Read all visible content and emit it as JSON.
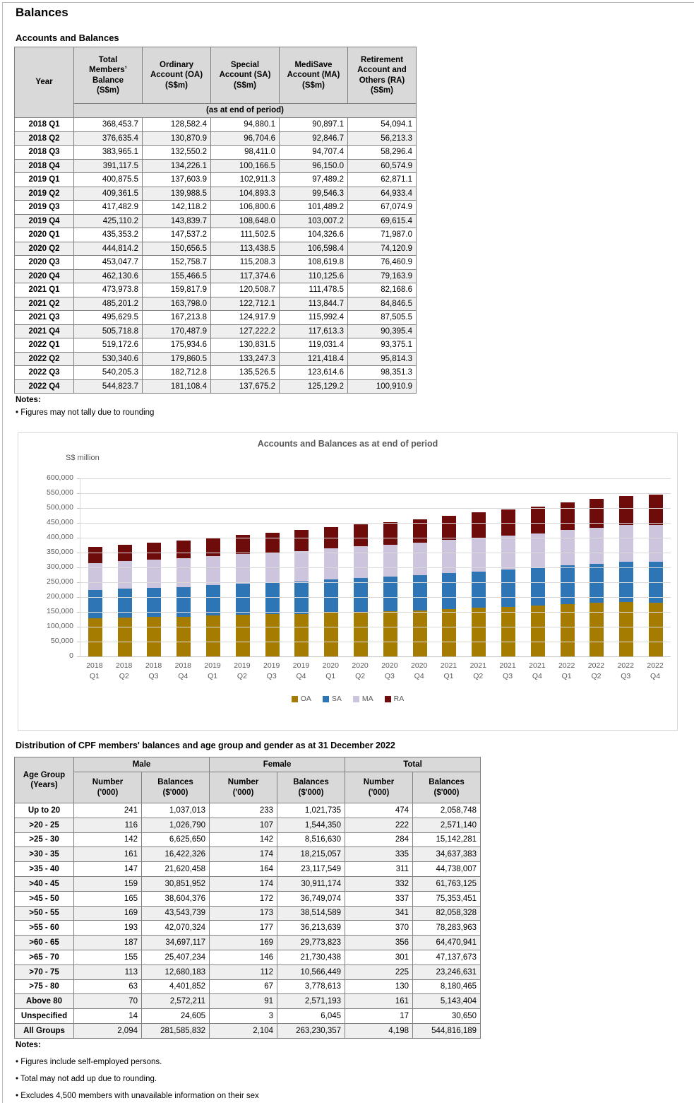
{
  "page": {
    "title": "Balances"
  },
  "table1": {
    "title": "Accounts and Balances",
    "columns": [
      [
        "Year"
      ],
      [
        "Total",
        "Members’",
        "Balance",
        "(S$m)"
      ],
      [
        "Ordinary",
        "Account (OA)",
        "(S$m)"
      ],
      [
        "Special",
        "Account (SA)",
        "(S$m)"
      ],
      [
        "MediSave",
        "Account (MA)",
        "(S$m)"
      ],
      [
        "Retirement",
        "Account and",
        "Others (RA)",
        "(S$m)"
      ]
    ],
    "subheader": "(as at end of period)",
    "rows": [
      [
        "2018 Q1",
        368453.7,
        128582.4,
        94880.1,
        90897.1,
        54094.1
      ],
      [
        "2018 Q2",
        376635.4,
        130870.9,
        96704.6,
        92846.7,
        56213.3
      ],
      [
        "2018 Q3",
        383965.1,
        132550.2,
        98411.0,
        94707.4,
        58296.4
      ],
      [
        "2018 Q4",
        391117.5,
        134226.1,
        100166.5,
        96150.0,
        60574.9
      ],
      [
        "2019 Q1",
        400875.5,
        137603.9,
        102911.3,
        97489.2,
        62871.1
      ],
      [
        "2019 Q2",
        409361.5,
        139988.5,
        104893.3,
        99546.3,
        64933.4
      ],
      [
        "2019 Q3",
        417482.9,
        142118.2,
        106800.6,
        101489.2,
        67074.9
      ],
      [
        "2019 Q4",
        425110.2,
        143839.7,
        108648.0,
        103007.2,
        69615.4
      ],
      [
        "2020 Q1",
        435353.2,
        147537.2,
        111502.5,
        104326.6,
        71987.0
      ],
      [
        "2020 Q2",
        444814.2,
        150656.5,
        113438.5,
        106598.4,
        74120.9
      ],
      [
        "2020 Q3",
        453047.7,
        152758.7,
        115208.3,
        108619.8,
        76460.9
      ],
      [
        "2020 Q4",
        462130.6,
        155466.5,
        117374.6,
        110125.6,
        79163.9
      ],
      [
        "2021 Q1",
        473973.8,
        159817.9,
        120508.7,
        111478.5,
        82168.6
      ],
      [
        "2021 Q2",
        485201.2,
        163798.0,
        122712.1,
        113844.7,
        84846.5
      ],
      [
        "2021 Q3",
        495629.5,
        167213.8,
        124917.9,
        115992.4,
        87505.5
      ],
      [
        "2021 Q4",
        505718.8,
        170487.9,
        127222.2,
        117613.3,
        90395.4
      ],
      [
        "2022 Q1",
        519172.6,
        175934.6,
        130831.5,
        119031.4,
        93375.1
      ],
      [
        "2022 Q2",
        530340.6,
        179860.5,
        133247.3,
        121418.4,
        95814.3
      ],
      [
        "2022 Q3",
        540205.3,
        182712.8,
        135526.5,
        123614.6,
        98351.3
      ],
      [
        "2022 Q4",
        544823.7,
        181108.4,
        137675.2,
        125129.2,
        100910.9
      ]
    ],
    "notes_label": "Notes:",
    "notes": [
      "Figures may not tally due to rounding"
    ]
  },
  "chart_data": {
    "type": "bar",
    "stacked": true,
    "title": "Accounts and Balances as at end of period",
    "ylabel": "S$ million",
    "xlabel": "",
    "ylim": [
      0,
      600000
    ],
    "ytick_step": 50000,
    "grid": true,
    "legend_position": "bottom",
    "categories": [
      "2018 Q1",
      "2018 Q2",
      "2018 Q3",
      "2018 Q4",
      "2019 Q1",
      "2019 Q2",
      "2019 Q3",
      "2019 Q4",
      "2020 Q1",
      "2020 Q2",
      "2020 Q3",
      "2020 Q4",
      "2021 Q1",
      "2021 Q2",
      "2021 Q3",
      "2021 Q4",
      "2022 Q1",
      "2022 Q2",
      "2022 Q3",
      "2022 Q4"
    ],
    "series": [
      {
        "name": "OA",
        "color": "#A67C00",
        "values": [
          128582.4,
          130870.9,
          132550.2,
          134226.1,
          137603.9,
          139988.5,
          142118.2,
          143839.7,
          147537.2,
          150656.5,
          152758.7,
          155466.5,
          159817.9,
          163798.0,
          167213.8,
          170487.9,
          175934.6,
          179860.5,
          182712.8,
          181108.4
        ]
      },
      {
        "name": "SA",
        "color": "#2E75B6",
        "values": [
          94880.1,
          96704.6,
          98411.0,
          100166.5,
          102911.3,
          104893.3,
          106800.6,
          108648.0,
          111502.5,
          113438.5,
          115208.3,
          117374.6,
          120508.7,
          122712.1,
          124917.9,
          127222.2,
          130831.5,
          133247.3,
          135526.5,
          137675.2
        ]
      },
      {
        "name": "MA",
        "color": "#CDC5DE",
        "values": [
          90897.1,
          92846.7,
          94707.4,
          96150.0,
          97489.2,
          99546.3,
          101489.2,
          103007.2,
          104326.6,
          106598.4,
          108619.8,
          110125.6,
          111478.5,
          113844.7,
          115992.4,
          117613.3,
          119031.4,
          121418.4,
          123614.6,
          125129.2
        ]
      },
      {
        "name": "RA",
        "color": "#6E0B0B",
        "values": [
          54094.1,
          56213.3,
          58296.4,
          60574.9,
          62871.1,
          64933.4,
          67074.9,
          69615.4,
          71987.0,
          74120.9,
          76460.9,
          79163.9,
          82168.6,
          84846.5,
          87505.5,
          90395.4,
          93375.1,
          95814.3,
          98351.3,
          100910.9
        ]
      }
    ]
  },
  "table2": {
    "title": "Distribution of CPF members' balances and age group and gender as at 31 December 2022",
    "row_header_lines": [
      "Age Group",
      "(Years)"
    ],
    "groups": [
      "Male",
      "Female",
      "Total"
    ],
    "subcols": [
      {
        "l1": "Number",
        "l2": "('000)"
      },
      {
        "l1": "Balances",
        "l2": "($'000)"
      }
    ],
    "rows": [
      [
        "Up to 20",
        "241",
        "1,037,013",
        "233",
        "1,021,735",
        "474",
        "2,058,748"
      ],
      [
        ">20 - 25",
        "116",
        "1,026,790",
        "107",
        "1,544,350",
        "222",
        "2,571,140"
      ],
      [
        ">25 - 30",
        "142",
        "6,625,650",
        "142",
        "8,516,630",
        "284",
        "15,142,281"
      ],
      [
        ">30 - 35",
        "161",
        "16,422,326",
        "174",
        "18,215,057",
        "335",
        "34,637,383"
      ],
      [
        ">35 - 40",
        "147",
        "21,620,458",
        "164",
        "23,117,549",
        "311",
        "44,738,007"
      ],
      [
        ">40 - 45",
        "159",
        "30,851,952",
        "174",
        "30,911,174",
        "332",
        "61,763,125"
      ],
      [
        ">45 - 50",
        "165",
        "38,604,376",
        "172",
        "36,749,074",
        "337",
        "75,353,451"
      ],
      [
        ">50 - 55",
        "169",
        "43,543,739",
        "173",
        "38,514,589",
        "341",
        "82,058,328"
      ],
      [
        ">55 - 60",
        "193",
        "42,070,324",
        "177",
        "36,213,639",
        "370",
        "78,283,963"
      ],
      [
        ">60 - 65",
        "187",
        "34,697,117",
        "169",
        "29,773,823",
        "356",
        "64,470,941"
      ],
      [
        ">65 - 70",
        "155",
        "25,407,234",
        "146",
        "21,730,438",
        "301",
        "47,137,673"
      ],
      [
        ">70 - 75",
        "113",
        "12,680,183",
        "112",
        "10,566,449",
        "225",
        "23,246,631"
      ],
      [
        ">75 - 80",
        "63",
        "4,401,852",
        "67",
        "3,778,613",
        "130",
        "8,180,465"
      ],
      [
        "Above 80",
        "70",
        "2,572,211",
        "91",
        "2,571,193",
        "161",
        "5,143,404"
      ],
      [
        "Unspecified",
        "14",
        "24,605",
        "3",
        "6,045",
        "17",
        "30,650"
      ],
      [
        "All Groups",
        "2,094",
        "281,585,832",
        "2,104",
        "263,230,357",
        "4,198",
        "544,816,189"
      ]
    ],
    "notes_label": "Notes:",
    "notes": [
      "Figures include self-employed persons.",
      "Total may not add up due to rounding.",
      "Excludes 4,500 members with unavailable information on their sex"
    ]
  }
}
